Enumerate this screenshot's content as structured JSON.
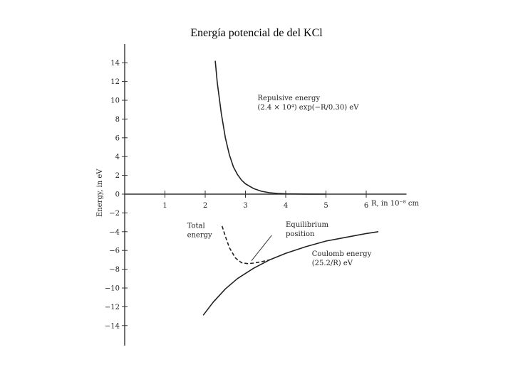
{
  "title": "Energía potencial de del KCl",
  "chart_data": {
    "type": "line",
    "title": "Energía potencial de del KCl",
    "xlabel": "R, in 10⁻⁸ cm",
    "ylabel": "Energy, in eV",
    "xlim": [
      0,
      7
    ],
    "ylim": [
      -16,
      15
    ],
    "x_ticks": [
      1,
      2,
      3,
      4,
      5,
      6
    ],
    "y_ticks": [
      14,
      12,
      10,
      8,
      6,
      4,
      2,
      0,
      -2,
      -4,
      -6,
      -8,
      -10,
      -12,
      -14
    ],
    "x_tick_labels": [
      "1",
      "2",
      "3",
      "4",
      "5",
      "6"
    ],
    "y_tick_labels": [
      "14",
      "12",
      "10",
      "8",
      "6",
      "4",
      "2",
      "0",
      "−2",
      "−4",
      "−6",
      "−8",
      "−10",
      "−12",
      "−14"
    ],
    "grid": false,
    "series": [
      {
        "name": "Repulsive energy",
        "style": "solid",
        "x": [
          2.25,
          2.3,
          2.4,
          2.5,
          2.6,
          2.7,
          2.8,
          2.9,
          3.0,
          3.2,
          3.4,
          3.6,
          3.8,
          4.0,
          4.5,
          5.0
        ],
        "y": [
          14.2,
          11.9,
          8.6,
          6.0,
          4.2,
          2.9,
          2.1,
          1.5,
          1.1,
          0.6,
          0.3,
          0.15,
          0.07,
          0.03,
          0.01,
          0.0
        ]
      },
      {
        "name": "Coulomb energy",
        "style": "solid",
        "x": [
          1.95,
          2.2,
          2.5,
          2.8,
          3.2,
          3.6,
          4.0,
          4.5,
          5.0,
          5.5,
          6.0,
          6.3
        ],
        "y": [
          -12.9,
          -11.5,
          -10.1,
          -9.0,
          -7.9,
          -7.0,
          -6.3,
          -5.6,
          -5.0,
          -4.6,
          -4.2,
          -4.0
        ]
      },
      {
        "name": "Total energy",
        "style": "dashed",
        "x": [
          2.42,
          2.5,
          2.6,
          2.75,
          2.9,
          3.05,
          3.2,
          3.4,
          3.6
        ],
        "y": [
          -3.4,
          -4.5,
          -5.7,
          -6.8,
          -7.3,
          -7.4,
          -7.35,
          -7.2,
          -7.0
        ]
      }
    ],
    "annotations": [
      {
        "text_lines": [
          "Repulsive energy",
          "(2.4 × 10⁴) exp(−R/0.30) eV"
        ],
        "x": 3.3,
        "y": 10.0
      },
      {
        "text_lines": [
          "Total",
          "energy"
        ],
        "x": 1.55,
        "y": -3.6
      },
      {
        "text_lines": [
          "Equilibrium",
          "position"
        ],
        "x": 4.0,
        "y": -3.5
      },
      {
        "text_lines": [
          "Coulomb energy",
          "(25.2/R) eV"
        ],
        "x": 4.65,
        "y": -6.6
      }
    ]
  }
}
